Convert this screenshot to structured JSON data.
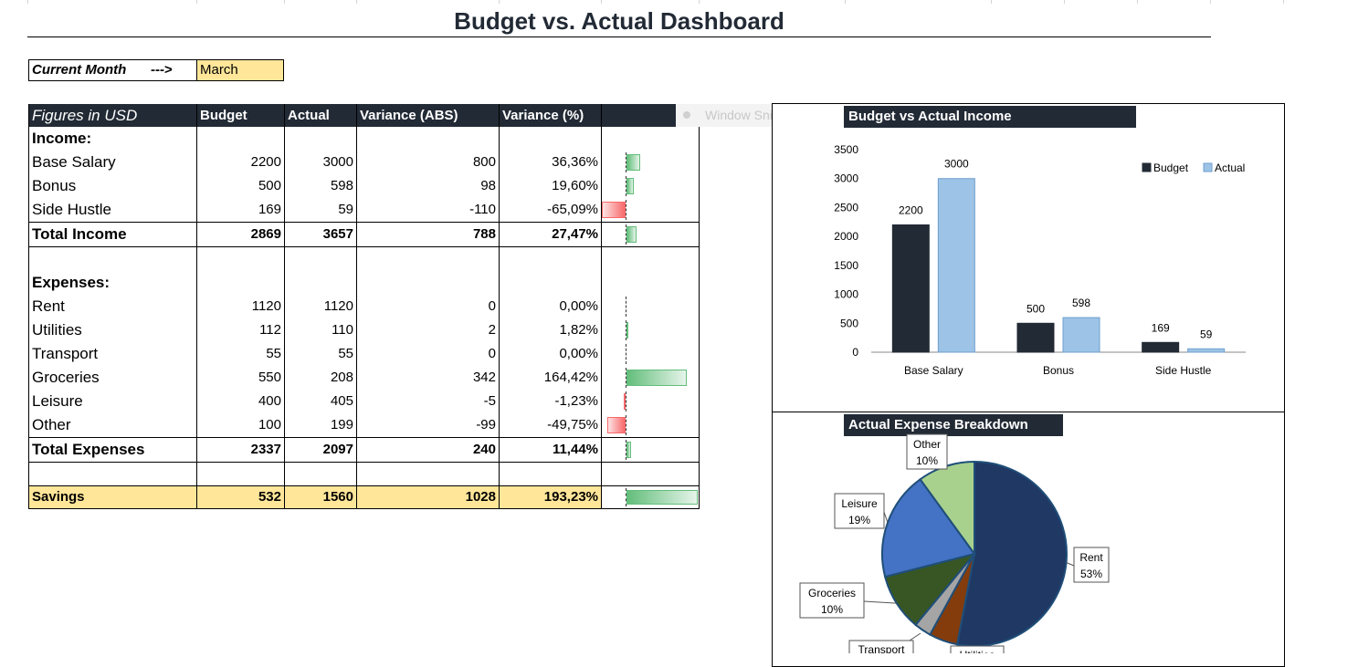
{
  "title": "Budget vs. Actual Dashboard",
  "current_month": {
    "label": "Current Month",
    "arrow": "--->",
    "value": "March"
  },
  "table": {
    "headers": [
      "Figures in USD",
      "Budget",
      "Actual",
      "Variance (ABS)",
      "Variance (%)"
    ],
    "income_label": "Income:",
    "income": [
      {
        "name": "Base Salary",
        "budget": "2200",
        "actual": "3000",
        "var_abs": "800",
        "var_pct": "36,36%"
      },
      {
        "name": "Bonus",
        "budget": "500",
        "actual": "598",
        "var_abs": "98",
        "var_pct": "19,60%"
      },
      {
        "name": "Side Hustle",
        "budget": "169",
        "actual": "59",
        "var_abs": "-110",
        "var_pct": "-65,09%"
      }
    ],
    "total_income": {
      "name": "Total Income",
      "budget": "2869",
      "actual": "3657",
      "var_abs": "788",
      "var_pct": "27,47%"
    },
    "expenses_label": "Expenses:",
    "expenses": [
      {
        "name": "Rent",
        "budget": "1120",
        "actual": "1120",
        "var_abs": "0",
        "var_pct": "0,00%"
      },
      {
        "name": "Utilities",
        "budget": "112",
        "actual": "110",
        "var_abs": "2",
        "var_pct": "1,82%"
      },
      {
        "name": "Transport",
        "budget": "55",
        "actual": "55",
        "var_abs": "0",
        "var_pct": "0,00%"
      },
      {
        "name": "Groceries",
        "budget": "550",
        "actual": "208",
        "var_abs": "342",
        "var_pct": "164,42%"
      },
      {
        "name": "Leisure",
        "budget": "400",
        "actual": "405",
        "var_abs": "-5",
        "var_pct": "-1,23%"
      },
      {
        "name": "Other",
        "budget": "100",
        "actual": "199",
        "var_abs": "-99",
        "var_pct": "-49,75%"
      }
    ],
    "total_expenses": {
      "name": "Total Expenses",
      "budget": "2337",
      "actual": "2097",
      "var_abs": "240",
      "var_pct": "11,44%"
    },
    "savings": {
      "name": "Savings",
      "budget": "532",
      "actual": "1560",
      "var_abs": "1028",
      "var_pct": "193,23%"
    },
    "data_bars": {
      "positive_color": "#63be7b",
      "negative_color": "#f8696b",
      "base_salary": 36.36,
      "bonus": 19.6,
      "side_hustle": -65.09,
      "total_income": 27.47,
      "rent": 0,
      "utilities": 1.82,
      "transport": 0,
      "groceries": 164.42,
      "leisure": -1.23,
      "other": -49.75,
      "total_expenses": 11.44,
      "savings": 193.23
    }
  },
  "ghost_overlay": {
    "label": "Window Snip"
  },
  "chart_data": [
    {
      "type": "bar",
      "title": "Budget vs Actual Income",
      "categories": [
        "Base Salary",
        "Bonus",
        "Side Hustle"
      ],
      "series": [
        {
          "name": "Budget",
          "values": [
            2200,
            500,
            169
          ],
          "color": "#222a35"
        },
        {
          "name": "Actual",
          "values": [
            3000,
            598,
            59
          ],
          "color": "#9dc3e6"
        }
      ],
      "ylim": [
        0,
        3500
      ],
      "yticks": [
        0,
        500,
        1000,
        1500,
        2000,
        2500,
        3000,
        3500
      ],
      "legend": "top-right",
      "grid": false
    },
    {
      "type": "pie",
      "title": "Actual Expense Breakdown",
      "slices": [
        {
          "label": "Rent",
          "value": 53,
          "pct": "53%",
          "color": "#203864"
        },
        {
          "label": "Utilities",
          "value": 5,
          "pct": "",
          "color": "#843c0c"
        },
        {
          "label": "Transport",
          "value": 3,
          "pct": "",
          "color": "#a5a5a5"
        },
        {
          "label": "Groceries",
          "value": 10,
          "pct": "10%",
          "color": "#375623"
        },
        {
          "label": "Leisure",
          "value": 19,
          "pct": "19%",
          "color": "#4472c4"
        },
        {
          "label": "Other",
          "value": 10,
          "pct": "10%",
          "color": "#a9d18e"
        }
      ]
    }
  ]
}
